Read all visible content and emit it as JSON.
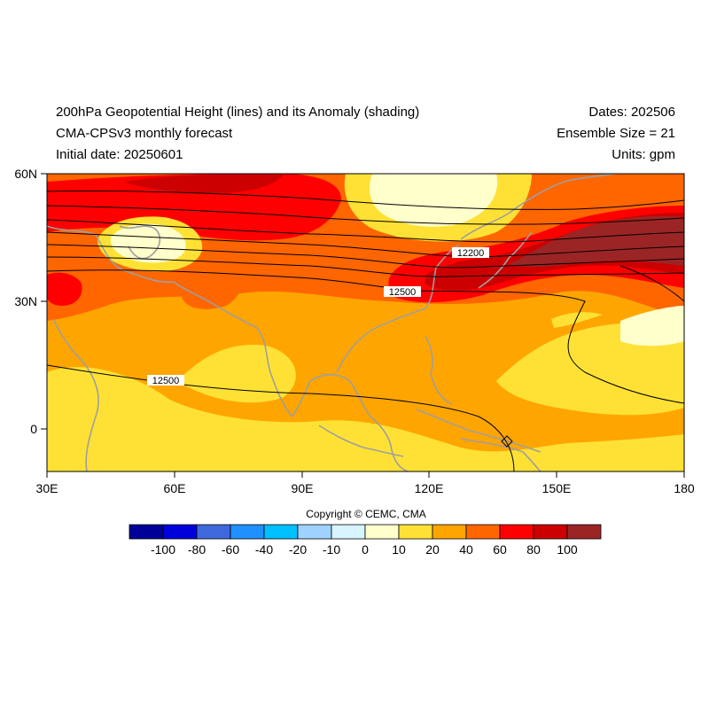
{
  "header": {
    "title": "200hPa Geopotential Height (lines) and its Anomaly (shading)",
    "model": "CMA-CPSv3 monthly forecast",
    "initial": "Initial date: 20250601",
    "dates": "Dates: 202506",
    "ensemble": "Ensemble Size = 21",
    "units": "Units: gpm"
  },
  "map": {
    "lat_labels": [
      "60N",
      "30N",
      "0"
    ],
    "lon_labels": [
      "30E",
      "60E",
      "90E",
      "120E",
      "150E",
      "180"
    ],
    "contour_labels": [
      "12200",
      "12500",
      "12500"
    ]
  },
  "copyright": "Copyright © CEMC, CMA",
  "colorbar": {
    "labels": [
      "-100",
      "-80",
      "-60",
      "-40",
      "-20",
      "-10",
      "0",
      "10",
      "20",
      "40",
      "60",
      "80",
      "100"
    ],
    "colors": [
      "#000099",
      "#0000dd",
      "#3e68dc",
      "#1e90ff",
      "#00bfff",
      "#a0d2ff",
      "#d7f4ff",
      "#ffffcc",
      "#ffe135",
      "#ffa500",
      "#ff6600",
      "#ff0000",
      "#cc0000",
      "#9b2525"
    ]
  }
}
